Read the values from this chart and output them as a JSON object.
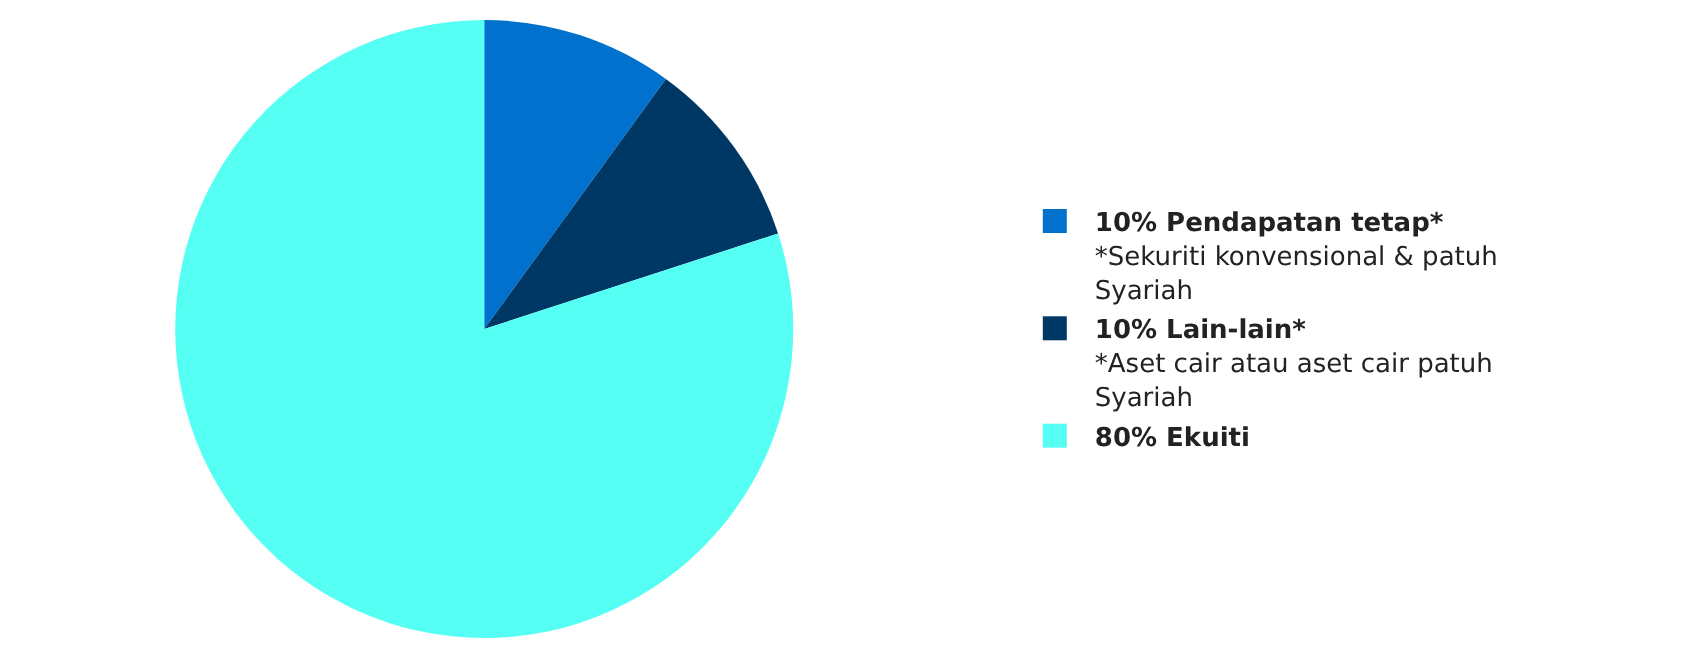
{
  "chart_data": {
    "type": "pie",
    "categories": [
      "10% Pendapatan tetap*",
      "10% Lain-lain*",
      "80% Ekuiti"
    ],
    "values": [
      10,
      10,
      80
    ],
    "colors": [
      "#0072ce",
      "#003865",
      "#55fff4"
    ],
    "annotations": [
      "*Sekuriti konvensional & patuh Syariah",
      "*Aset cair atau aset cair patuh Syariah",
      null
    ],
    "legend": "right"
  }
}
